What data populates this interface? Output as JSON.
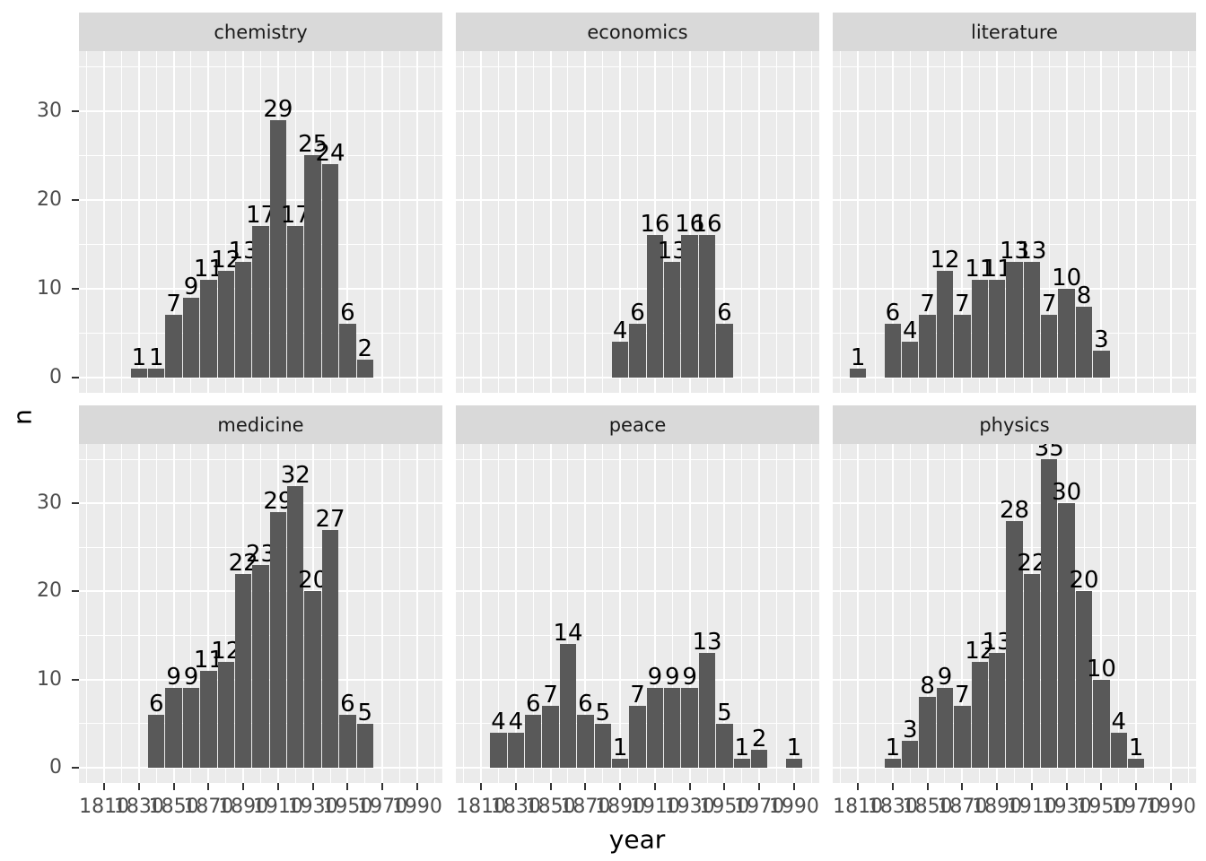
{
  "chart_data": {
    "type": "bar",
    "subtype": "faceted-histogram",
    "title": "",
    "xlabel": "year",
    "ylabel": "n",
    "legend": "none",
    "grid": "major-and-minor-white-on-grey-panel",
    "bin_width": 10,
    "xlim": [
      1795.5,
      2004.5
    ],
    "ylim": [
      -1.75,
      36.75
    ],
    "x_ticks": [
      1810,
      1830,
      1850,
      1870,
      1890,
      1910,
      1930,
      1950,
      1970,
      1990
    ],
    "x_minor_ticks": [
      1800,
      1820,
      1840,
      1860,
      1880,
      1900,
      1920,
      1940,
      1960,
      1980,
      2000
    ],
    "y_ticks": [
      0,
      10,
      20,
      30
    ],
    "y_minor_ticks": [
      5,
      15,
      25,
      35
    ],
    "facet_layout": {
      "rows": 2,
      "cols": 3
    },
    "facets": [
      {
        "label": "chemistry",
        "x": [
          1830,
          1840,
          1850,
          1860,
          1870,
          1880,
          1890,
          1900,
          1910,
          1920,
          1930,
          1940,
          1950,
          1960
        ],
        "n": [
          1,
          1,
          7,
          9,
          11,
          12,
          13,
          17,
          29,
          17,
          25,
          24,
          6,
          2
        ]
      },
      {
        "label": "economics",
        "x": [
          1890,
          1900,
          1910,
          1920,
          1930,
          1940,
          1950
        ],
        "n": [
          4,
          6,
          16,
          13,
          16,
          16,
          6
        ]
      },
      {
        "label": "literature",
        "x": [
          1810,
          1830,
          1840,
          1850,
          1860,
          1870,
          1880,
          1890,
          1900,
          1910,
          1920,
          1930,
          1940,
          1950
        ],
        "n": [
          1,
          6,
          4,
          7,
          12,
          7,
          11,
          11,
          13,
          13,
          7,
          10,
          8,
          3
        ]
      },
      {
        "label": "medicine",
        "x": [
          1840,
          1850,
          1860,
          1870,
          1880,
          1890,
          1900,
          1910,
          1920,
          1930,
          1940,
          1950,
          1960
        ],
        "n": [
          6,
          9,
          9,
          11,
          12,
          22,
          23,
          29,
          32,
          20,
          27,
          6,
          5
        ]
      },
      {
        "label": "peace",
        "x": [
          1820,
          1830,
          1840,
          1850,
          1860,
          1870,
          1880,
          1890,
          1900,
          1910,
          1920,
          1930,
          1940,
          1950,
          1960,
          1970,
          1990
        ],
        "n": [
          4,
          4,
          6,
          7,
          14,
          6,
          5,
          1,
          7,
          9,
          9,
          9,
          13,
          5,
          1,
          2,
          1
        ]
      },
      {
        "label": "physics",
        "x": [
          1830,
          1840,
          1850,
          1860,
          1870,
          1880,
          1890,
          1900,
          1910,
          1920,
          1930,
          1940,
          1950,
          1960,
          1970
        ],
        "n": [
          1,
          3,
          8,
          9,
          7,
          12,
          13,
          28,
          22,
          35,
          30,
          20,
          10,
          4,
          1
        ]
      }
    ]
  },
  "colors": {
    "background": "#FFFFFF",
    "panel_bg": "#EBEBEB",
    "strip_bg": "#D9D9D9",
    "strip_text": "#1A1A1A",
    "grid": "#FFFFFF",
    "bar": "#595959",
    "bar_label_text": "#000000",
    "tick_label": "#4D4D4D",
    "tick_mark": "#333333",
    "axis_title": "#000000"
  }
}
